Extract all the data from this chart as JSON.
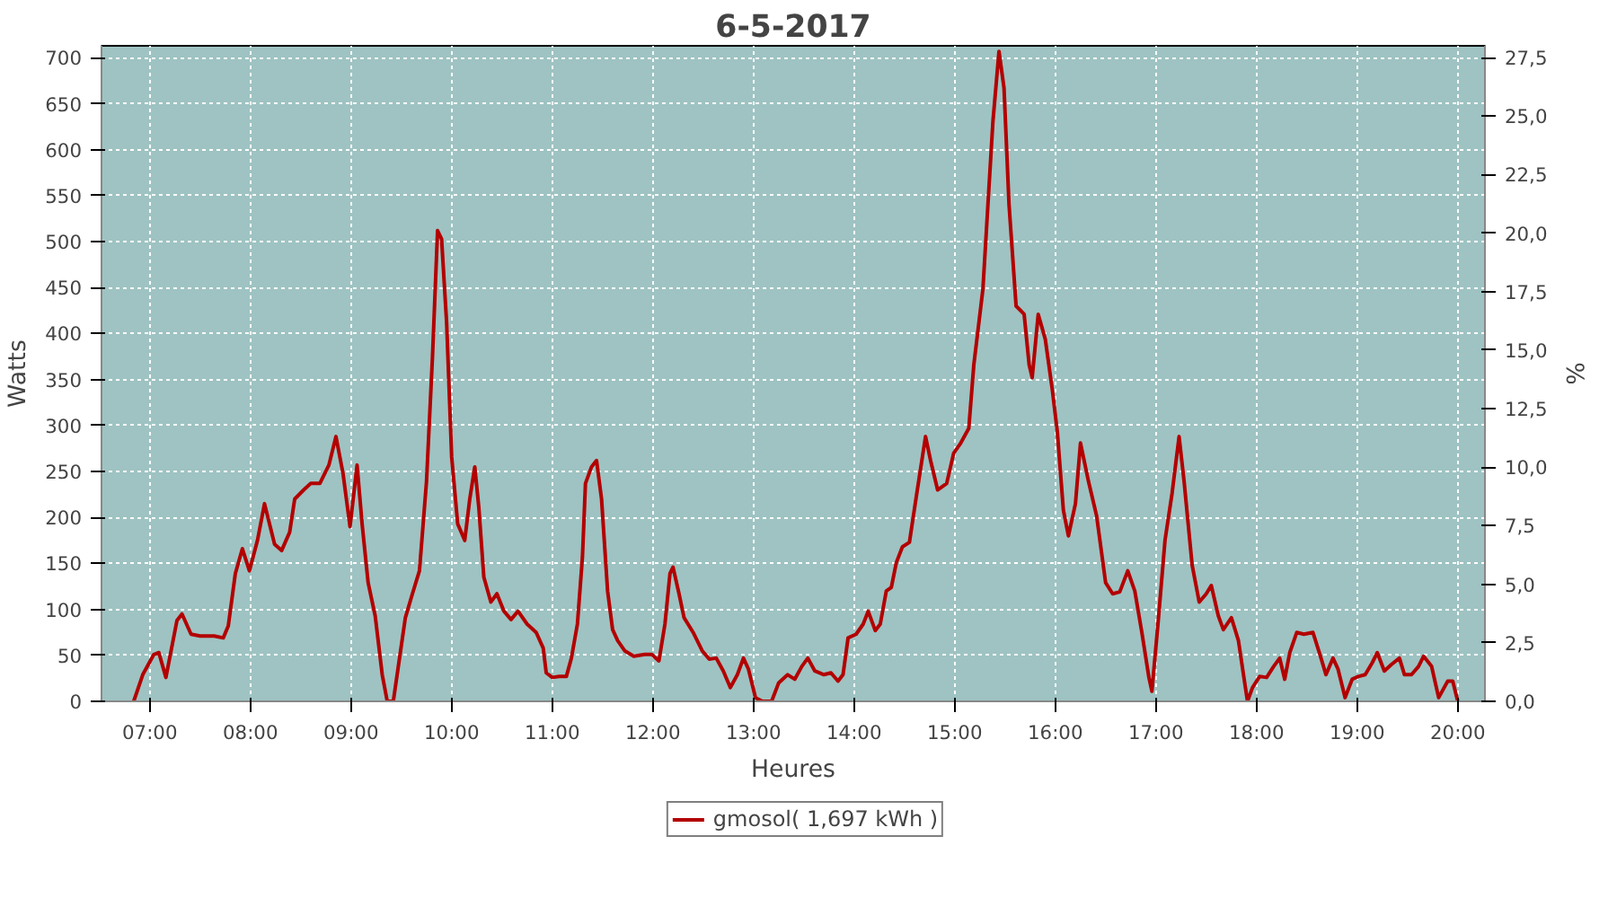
{
  "chart_data": {
    "type": "line",
    "title": "6-5-2017",
    "xlabel": "Heures",
    "ylabel": "Watts",
    "y2label": "%",
    "xlim": [
      6.52,
      20.27
    ],
    "xticks": [
      {
        "value": 7,
        "label": "07:00"
      },
      {
        "value": 8,
        "label": "08:00"
      },
      {
        "value": 9,
        "label": "09:00"
      },
      {
        "value": 10,
        "label": "10:00"
      },
      {
        "value": 11,
        "label": "11:00"
      },
      {
        "value": 12,
        "label": "12:00"
      },
      {
        "value": 13,
        "label": "13:00"
      },
      {
        "value": 14,
        "label": "14:00"
      },
      {
        "value": 15,
        "label": "15:00"
      },
      {
        "value": 16,
        "label": "16:00"
      },
      {
        "value": 17,
        "label": "17:00"
      },
      {
        "value": 18,
        "label": "18:00"
      },
      {
        "value": 19,
        "label": "19:00"
      },
      {
        "value": 20,
        "label": "20:00"
      }
    ],
    "ylim": [
      0,
      713
    ],
    "yticks": [
      0,
      50,
      100,
      150,
      200,
      250,
      300,
      350,
      400,
      450,
      500,
      550,
      600,
      650,
      700
    ],
    "y2lim": [
      0,
      28.0
    ],
    "y2ticks": [
      {
        "value": 0,
        "label": "0,0"
      },
      {
        "value": 2.5,
        "label": "2,5"
      },
      {
        "value": 5,
        "label": "5,0"
      },
      {
        "value": 7.5,
        "label": "7,5"
      },
      {
        "value": 10,
        "label": "10,0"
      },
      {
        "value": 12.5,
        "label": "12,5"
      },
      {
        "value": 15,
        "label": "15,0"
      },
      {
        "value": 17.5,
        "label": "17,5"
      },
      {
        "value": 20,
        "label": "20,0"
      },
      {
        "value": 22.5,
        "label": "22,5"
      },
      {
        "value": 25,
        "label": "25,0"
      },
      {
        "value": 27.5,
        "label": "27,5"
      }
    ],
    "grid": true,
    "legend": "bottom",
    "line_style": "solid",
    "x": [
      6.84,
      6.93,
      7.04,
      7.09,
      7.16,
      7.27,
      7.32,
      7.41,
      7.5,
      7.64,
      7.73,
      7.78,
      7.85,
      7.92,
      7.99,
      8.07,
      8.14,
      8.19,
      8.24,
      8.31,
      8.39,
      8.44,
      8.53,
      8.6,
      8.69,
      8.78,
      8.85,
      8.92,
      8.99,
      9.06,
      9.11,
      9.17,
      9.24,
      9.31,
      9.36,
      9.42,
      9.47,
      9.54,
      9.61,
      9.68,
      9.75,
      9.81,
      9.86,
      9.9,
      9.95,
      10.0,
      10.06,
      10.13,
      10.18,
      10.23,
      10.27,
      10.32,
      10.39,
      10.45,
      10.52,
      10.59,
      10.66,
      10.75,
      10.84,
      10.91,
      10.94,
      11.0,
      11.07,
      11.14,
      11.19,
      11.25,
      11.3,
      11.33,
      11.39,
      11.44,
      11.49,
      11.55,
      11.6,
      11.65,
      11.72,
      11.81,
      11.92,
      11.99,
      12.06,
      12.12,
      12.17,
      12.2,
      12.26,
      12.31,
      12.4,
      12.49,
      12.56,
      12.63,
      12.7,
      12.77,
      12.84,
      12.9,
      12.95,
      13.02,
      13.09,
      13.18,
      13.25,
      13.34,
      13.41,
      13.48,
      13.54,
      13.61,
      13.7,
      13.77,
      13.84,
      13.89,
      13.94,
      14.02,
      14.09,
      14.14,
      14.21,
      14.26,
      14.32,
      14.37,
      14.42,
      14.48,
      14.55,
      14.62,
      14.71,
      14.76,
      14.83,
      14.92,
      14.99,
      15.06,
      15.14,
      15.19,
      15.28,
      15.33,
      15.38,
      15.44,
      15.49,
      15.54,
      15.61,
      15.69,
      15.74,
      15.77,
      15.83,
      15.9,
      15.97,
      16.02,
      16.08,
      16.13,
      16.2,
      16.25,
      16.33,
      16.41,
      16.5,
      16.57,
      16.64,
      16.72,
      16.79,
      16.86,
      16.93,
      16.96,
      17.02,
      17.09,
      17.16,
      17.23,
      17.28,
      17.36,
      17.43,
      17.5,
      17.55,
      17.62,
      17.67,
      17.75,
      17.82,
      17.87,
      17.91,
      17.96,
      18.03,
      18.1,
      18.17,
      18.23,
      18.28,
      18.33,
      18.4,
      18.47,
      18.56,
      18.63,
      18.69,
      18.76,
      18.81,
      18.88,
      18.95,
      19.01,
      19.08,
      19.15,
      19.2,
      19.27,
      19.34,
      19.42,
      19.47,
      19.54,
      19.61,
      19.66,
      19.74,
      19.81,
      19.9,
      19.95,
      20.0
    ],
    "series": [
      {
        "name": "gmosol( 1,697 kWh )",
        "color": "#b30000",
        "values": [
          0,
          29,
          51,
          53,
          26,
          88,
          95,
          73,
          71,
          71,
          69,
          82,
          139,
          166,
          142,
          175,
          215,
          193,
          171,
          164,
          184,
          220,
          230,
          237,
          237,
          257,
          288,
          248,
          190,
          257,
          193,
          129,
          93,
          29,
          0,
          0,
          38,
          91,
          117,
          142,
          239,
          376,
          512,
          503,
          412,
          266,
          193,
          175,
          220,
          255,
          211,
          135,
          108,
          117,
          98,
          89,
          98,
          84,
          75,
          58,
          31,
          26,
          27,
          27,
          47,
          84,
          157,
          237,
          255,
          262,
          220,
          120,
          78,
          66,
          55,
          49,
          51,
          51,
          44,
          84,
          139,
          146,
          117,
          91,
          75,
          55,
          46,
          47,
          33,
          15,
          29,
          47,
          35,
          4,
          0,
          0,
          20,
          29,
          24,
          38,
          47,
          33,
          29,
          31,
          22,
          29,
          69,
          73,
          84,
          98,
          77,
          84,
          120,
          124,
          151,
          168,
          173,
          224,
          288,
          262,
          230,
          237,
          270,
          281,
          297,
          366,
          448,
          540,
          631,
          707,
          667,
          540,
          430,
          421,
          366,
          352,
          421,
          394,
          339,
          293,
          208,
          180,
          215,
          281,
          239,
          202,
          129,
          117,
          119,
          142,
          120,
          75,
          26,
          11,
          84,
          175,
          226,
          288,
          239,
          148,
          108,
          117,
          126,
          93,
          78,
          91,
          66,
          29,
          0,
          15,
          27,
          26,
          38,
          47,
          24,
          53,
          75,
          73,
          75,
          51,
          29,
          47,
          35,
          4,
          24,
          27,
          29,
          42,
          53,
          33,
          40,
          47,
          29,
          29,
          38,
          49,
          38,
          4,
          22,
          22,
          0
        ]
      }
    ]
  }
}
